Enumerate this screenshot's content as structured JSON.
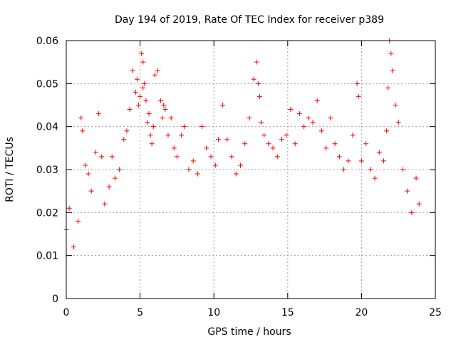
{
  "chart_data": {
    "type": "scatter",
    "title": "Day 194 of 2019, Rate Of TEC Index for receiver p389",
    "xlabel": "GPS time / hours",
    "ylabel": "ROTI / TECUs",
    "xlim": [
      0,
      25
    ],
    "ylim": [
      0,
      0.06
    ],
    "xticks": [
      0,
      5,
      10,
      15,
      20,
      25
    ],
    "yticks": [
      0,
      0.01,
      0.02,
      0.03,
      0.04,
      0.05,
      0.06
    ],
    "xtick_labels": [
      "0",
      "5",
      "10",
      "15",
      "20",
      "25"
    ],
    "ytick_labels": [
      "0",
      "0.01",
      "0.02",
      "0.03",
      "0.04",
      "0.05",
      "0.06"
    ],
    "grid": true,
    "marker": "plus",
    "color": "#ff0000",
    "series": [
      {
        "x": [
          0.0,
          0.2,
          0.5,
          0.8,
          1.0,
          1.1,
          1.3,
          1.5,
          1.7,
          2.0,
          2.2,
          2.4,
          2.6,
          2.9,
          3.1,
          3.3,
          3.6,
          3.9,
          4.1,
          4.3,
          4.5,
          4.7,
          4.8,
          4.9,
          5.0,
          5.1,
          5.2,
          5.2,
          5.3,
          5.4,
          5.5,
          5.6,
          5.7,
          5.8,
          5.9,
          6.0,
          6.2,
          6.4,
          6.5,
          6.6,
          6.7,
          6.9,
          7.1,
          7.3,
          7.5,
          7.8,
          8.0,
          8.3,
          8.6,
          8.9,
          9.2,
          9.5,
          9.8,
          10.1,
          10.3,
          10.6,
          10.9,
          11.2,
          11.5,
          11.8,
          12.1,
          12.4,
          12.7,
          12.9,
          13.0,
          13.1,
          13.2,
          13.4,
          13.7,
          14.0,
          14.3,
          14.6,
          14.9,
          15.2,
          15.5,
          15.8,
          16.1,
          16.4,
          16.7,
          17.0,
          17.3,
          17.6,
          17.9,
          18.2,
          18.5,
          18.8,
          19.1,
          19.4,
          19.7,
          19.8,
          20.0,
          20.3,
          20.6,
          20.9,
          21.2,
          21.5,
          21.7,
          21.8,
          21.9,
          22.0,
          22.1,
          22.3,
          22.5,
          22.8,
          23.1,
          23.4,
          23.7,
          23.9
        ],
        "y": [
          0.016,
          0.021,
          0.012,
          0.018,
          0.042,
          0.039,
          0.031,
          0.029,
          0.025,
          0.034,
          0.043,
          0.033,
          0.022,
          0.026,
          0.033,
          0.028,
          0.03,
          0.037,
          0.039,
          0.044,
          0.053,
          0.048,
          0.051,
          0.045,
          0.047,
          0.057,
          0.055,
          0.049,
          0.05,
          0.046,
          0.041,
          0.043,
          0.038,
          0.036,
          0.04,
          0.052,
          0.053,
          0.046,
          0.042,
          0.045,
          0.044,
          0.038,
          0.042,
          0.035,
          0.033,
          0.038,
          0.04,
          0.03,
          0.032,
          0.029,
          0.04,
          0.035,
          0.033,
          0.031,
          0.037,
          0.045,
          0.037,
          0.033,
          0.029,
          0.031,
          0.036,
          0.042,
          0.051,
          0.055,
          0.05,
          0.047,
          0.041,
          0.038,
          0.036,
          0.035,
          0.033,
          0.037,
          0.038,
          0.044,
          0.036,
          0.043,
          0.04,
          0.042,
          0.041,
          0.046,
          0.039,
          0.035,
          0.042,
          0.036,
          0.033,
          0.03,
          0.032,
          0.038,
          0.05,
          0.047,
          0.032,
          0.036,
          0.03,
          0.028,
          0.034,
          0.032,
          0.039,
          0.049,
          0.06,
          0.057,
          0.053,
          0.045,
          0.041,
          0.03,
          0.025,
          0.02,
          0.028,
          0.022
        ]
      }
    ]
  }
}
